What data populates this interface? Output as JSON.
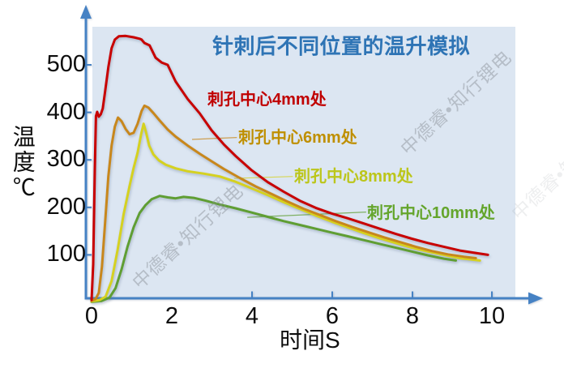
{
  "watermark": {
    "text": "中德睿•知行锂电"
  },
  "chart_data": {
    "type": "line",
    "title": "针刺后不同位置的温升模拟",
    "title_color": "#2e74b5",
    "xlabel": "时间S",
    "ylabel": "温度℃",
    "xlim": [
      0,
      10.9
    ],
    "ylim": [
      0,
      580
    ],
    "x_ticks": [
      0,
      2,
      4,
      6,
      8,
      10
    ],
    "y_ticks": [
      500,
      400,
      300,
      200,
      100
    ],
    "grid": false,
    "legend_position": "inline-labels",
    "plot_bg_color": "#dce6f2",
    "axis_color": "#4682c4",
    "series": [
      {
        "name": "刺孔中心4mm处",
        "label": "刺孔中心4mm处",
        "color": "#c80000",
        "label_color": "#c00000",
        "leader": null,
        "points": [
          [
            0,
            5
          ],
          [
            0.04,
            80
          ],
          [
            0.08,
            280
          ],
          [
            0.11,
            392
          ],
          [
            0.14,
            401
          ],
          [
            0.18,
            391
          ],
          [
            0.23,
            396
          ],
          [
            0.28,
            408
          ],
          [
            0.34,
            445
          ],
          [
            0.42,
            495
          ],
          [
            0.5,
            535
          ],
          [
            0.58,
            553
          ],
          [
            0.68,
            560
          ],
          [
            0.85,
            561
          ],
          [
            1.05,
            558
          ],
          [
            1.2,
            555
          ],
          [
            1.25,
            553
          ],
          [
            1.32,
            546
          ],
          [
            1.45,
            541
          ],
          [
            1.6,
            515
          ],
          [
            1.75,
            505
          ],
          [
            1.9,
            500
          ],
          [
            2.1,
            465
          ],
          [
            2.4,
            428
          ],
          [
            2.7,
            398
          ],
          [
            3,
            362
          ],
          [
            3.3,
            333
          ],
          [
            3.6,
            308
          ],
          [
            4,
            278
          ],
          [
            4.4,
            253
          ],
          [
            4.8,
            233
          ],
          [
            5.2,
            214
          ],
          [
            5.6,
            199
          ],
          [
            6,
            187
          ],
          [
            6.4,
            177
          ],
          [
            6.8,
            166
          ],
          [
            7.2,
            155
          ],
          [
            7.6,
            144
          ],
          [
            8,
            134
          ],
          [
            8.4,
            125
          ],
          [
            8.8,
            117
          ],
          [
            9.2,
            109
          ],
          [
            9.6,
            104
          ],
          [
            9.9,
            100
          ]
        ]
      },
      {
        "name": "刺孔中心6mm处",
        "label": "刺孔中心6mm处",
        "color": "#c8871c",
        "label_color": "#bf8f00",
        "leader": [
          [
            2.51,
            343
          ],
          [
            3.63,
            347
          ]
        ],
        "points": [
          [
            0,
            3
          ],
          [
            0.1,
            7
          ],
          [
            0.18,
            20
          ],
          [
            0.26,
            75
          ],
          [
            0.34,
            170
          ],
          [
            0.42,
            265
          ],
          [
            0.5,
            330
          ],
          [
            0.58,
            370
          ],
          [
            0.66,
            389
          ],
          [
            0.75,
            381
          ],
          [
            0.85,
            365
          ],
          [
            0.95,
            354
          ],
          [
            1.05,
            357
          ],
          [
            1.15,
            376
          ],
          [
            1.25,
            403
          ],
          [
            1.32,
            414
          ],
          [
            1.42,
            410
          ],
          [
            1.55,
            398
          ],
          [
            1.7,
            383
          ],
          [
            1.9,
            364
          ],
          [
            2.1,
            349
          ],
          [
            2.4,
            330
          ],
          [
            2.7,
            313
          ],
          [
            3,
            297
          ],
          [
            3.3,
            281
          ],
          [
            3.7,
            262
          ],
          [
            4.1,
            244
          ],
          [
            4.5,
            228
          ],
          [
            4.9,
            212
          ],
          [
            5.3,
            197
          ],
          [
            5.7,
            184
          ],
          [
            6.1,
            171
          ],
          [
            6.5,
            159
          ],
          [
            6.9,
            148
          ],
          [
            7.3,
            137
          ],
          [
            7.7,
            127
          ],
          [
            8.1,
            117
          ],
          [
            8.5,
            108
          ],
          [
            8.9,
            101
          ],
          [
            9.3,
            96
          ],
          [
            9.6,
            93
          ]
        ]
      },
      {
        "name": "刺孔中心8mm处",
        "label": "刺孔中心8mm处",
        "color": "#d5d120",
        "label_color": "#bcc61b",
        "leader": [
          [
            3.56,
            261
          ],
          [
            5.03,
            265
          ]
        ],
        "points": [
          [
            0,
            2
          ],
          [
            0.2,
            5
          ],
          [
            0.35,
            12
          ],
          [
            0.5,
            45
          ],
          [
            0.65,
            110
          ],
          [
            0.8,
            185
          ],
          [
            0.95,
            245
          ],
          [
            1.05,
            283
          ],
          [
            1.15,
            315
          ],
          [
            1.24,
            355
          ],
          [
            1.3,
            376
          ],
          [
            1.36,
            358
          ],
          [
            1.44,
            330
          ],
          [
            1.54,
            312
          ],
          [
            1.68,
            299
          ],
          [
            1.85,
            290
          ],
          [
            2.1,
            282
          ],
          [
            2.4,
            276
          ],
          [
            2.8,
            271
          ],
          [
            3.2,
            265
          ],
          [
            3.6,
            254
          ],
          [
            4,
            240
          ],
          [
            4.4,
            226
          ],
          [
            4.8,
            211
          ],
          [
            5.2,
            197
          ],
          [
            5.6,
            183
          ],
          [
            6,
            170
          ],
          [
            6.4,
            158
          ],
          [
            6.8,
            146
          ],
          [
            7.2,
            135
          ],
          [
            7.6,
            125
          ],
          [
            8,
            115
          ],
          [
            8.4,
            107
          ],
          [
            8.8,
            100
          ],
          [
            9.2,
            93
          ],
          [
            9.7,
            88
          ]
        ]
      },
      {
        "name": "刺孔中心10mm处",
        "label": "刺孔中心10mm处",
        "color": "#5f9e33",
        "label_color": "#64a52c",
        "leader": [
          [
            3.89,
            179
          ],
          [
            6.86,
            190
          ]
        ],
        "points": [
          [
            0,
            1
          ],
          [
            0.25,
            3
          ],
          [
            0.45,
            10
          ],
          [
            0.6,
            30
          ],
          [
            0.75,
            70
          ],
          [
            0.9,
            118
          ],
          [
            1.05,
            158
          ],
          [
            1.2,
            188
          ],
          [
            1.35,
            205
          ],
          [
            1.5,
            217
          ],
          [
            1.7,
            224
          ],
          [
            1.9,
            221
          ],
          [
            2.1,
            219
          ],
          [
            2.3,
            222
          ],
          [
            2.55,
            220
          ],
          [
            2.85,
            214
          ],
          [
            3.2,
            206
          ],
          [
            3.6,
            198
          ],
          [
            4,
            189
          ],
          [
            4.4,
            180
          ],
          [
            4.8,
            171
          ],
          [
            5.2,
            163
          ],
          [
            5.6,
            155
          ],
          [
            6,
            147
          ],
          [
            6.4,
            139
          ],
          [
            6.8,
            131
          ],
          [
            7.2,
            123
          ],
          [
            7.6,
            115
          ],
          [
            8,
            107
          ],
          [
            8.4,
            99
          ],
          [
            8.8,
            92
          ],
          [
            9.1,
            88
          ]
        ]
      }
    ]
  }
}
